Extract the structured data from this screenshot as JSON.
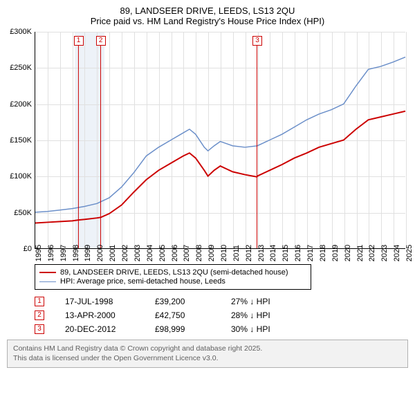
{
  "title": {
    "line1": "89, LANDSEER DRIVE, LEEDS, LS13 2QU",
    "line2": "Price paid vs. HM Land Registry's House Price Index (HPI)"
  },
  "chart": {
    "type": "line",
    "background_color": "#ffffff",
    "grid_color": "#e0e0e0",
    "axis_color": "#000000",
    "x_years": [
      1995,
      1996,
      1997,
      1998,
      1999,
      2000,
      2001,
      2002,
      2003,
      2004,
      2005,
      2006,
      2007,
      2008,
      2009,
      2010,
      2011,
      2012,
      2013,
      2014,
      2015,
      2016,
      2017,
      2018,
      2019,
      2020,
      2021,
      2022,
      2023,
      2024,
      2025
    ],
    "y_ticks": [
      0,
      50,
      100,
      150,
      200,
      250,
      300
    ],
    "y_tick_labels": [
      "£0",
      "£50K",
      "£100K",
      "£150K",
      "£200K",
      "£250K",
      "£300K"
    ],
    "ylim_max": 300,
    "shade_bands": [
      {
        "start": 1998.2,
        "end": 2000.6
      }
    ],
    "series": [
      {
        "name": "89, LANDSEER DRIVE, LEEDS, LS13 2QU (semi-detached house)",
        "color": "#cc0000",
        "width": 2,
        "points": [
          [
            1995,
            35
          ],
          [
            1996,
            36
          ],
          [
            1997,
            37
          ],
          [
            1998,
            38
          ],
          [
            1998.5,
            39.2
          ],
          [
            1999,
            40
          ],
          [
            2000,
            42
          ],
          [
            2000.3,
            42.75
          ],
          [
            2001,
            48
          ],
          [
            2002,
            60
          ],
          [
            2003,
            78
          ],
          [
            2004,
            95
          ],
          [
            2005,
            108
          ],
          [
            2006,
            118
          ],
          [
            2007,
            128
          ],
          [
            2007.5,
            132
          ],
          [
            2008,
            125
          ],
          [
            2008.7,
            108
          ],
          [
            2009,
            100
          ],
          [
            2009.5,
            108
          ],
          [
            2010,
            114
          ],
          [
            2010.5,
            110
          ],
          [
            2011,
            106
          ],
          [
            2012,
            102
          ],
          [
            2012.97,
            98.999
          ],
          [
            2013,
            100
          ],
          [
            2014,
            108
          ],
          [
            2015,
            116
          ],
          [
            2016,
            125
          ],
          [
            2017,
            132
          ],
          [
            2018,
            140
          ],
          [
            2019,
            145
          ],
          [
            2020,
            150
          ],
          [
            2021,
            165
          ],
          [
            2022,
            178
          ],
          [
            2023,
            182
          ],
          [
            2024,
            186
          ],
          [
            2025,
            190
          ]
        ]
      },
      {
        "name": "HPI: Average price, semi-detached house, Leeds",
        "color": "#6b8fc9",
        "width": 1.5,
        "points": [
          [
            1995,
            50
          ],
          [
            1996,
            51
          ],
          [
            1997,
            53
          ],
          [
            1998,
            55
          ],
          [
            1999,
            58
          ],
          [
            2000,
            62
          ],
          [
            2001,
            70
          ],
          [
            2002,
            85
          ],
          [
            2003,
            105
          ],
          [
            2004,
            128
          ],
          [
            2005,
            140
          ],
          [
            2006,
            150
          ],
          [
            2007,
            160
          ],
          [
            2007.5,
            165
          ],
          [
            2008,
            158
          ],
          [
            2008.7,
            140
          ],
          [
            2009,
            135
          ],
          [
            2009.5,
            142
          ],
          [
            2010,
            148
          ],
          [
            2010.5,
            145
          ],
          [
            2011,
            142
          ],
          [
            2012,
            140
          ],
          [
            2013,
            142
          ],
          [
            2014,
            150
          ],
          [
            2015,
            158
          ],
          [
            2016,
            168
          ],
          [
            2017,
            178
          ],
          [
            2018,
            186
          ],
          [
            2019,
            192
          ],
          [
            2020,
            200
          ],
          [
            2021,
            225
          ],
          [
            2022,
            248
          ],
          [
            2023,
            252
          ],
          [
            2024,
            258
          ],
          [
            2025,
            265
          ]
        ]
      }
    ],
    "sale_markers": [
      {
        "n": "1",
        "x": 1998.5,
        "y_top": 20
      },
      {
        "n": "2",
        "x": 2000.3,
        "y_top": 20
      },
      {
        "n": "3",
        "x": 2012.97,
        "y_top": 20
      }
    ],
    "marker_color": "#cc0000"
  },
  "legend": {
    "items": [
      {
        "color": "#cc0000",
        "width": 2,
        "label": "89, LANDSEER DRIVE, LEEDS, LS13 2QU (semi-detached house)"
      },
      {
        "color": "#6b8fc9",
        "width": 1.5,
        "label": "HPI: Average price, semi-detached house, Leeds"
      }
    ]
  },
  "transactions": [
    {
      "n": "1",
      "date": "17-JUL-1998",
      "price": "£39,200",
      "diff": "27% ↓ HPI"
    },
    {
      "n": "2",
      "date": "13-APR-2000",
      "price": "£42,750",
      "diff": "28% ↓ HPI"
    },
    {
      "n": "3",
      "date": "20-DEC-2012",
      "price": "£98,999",
      "diff": "30% ↓ HPI"
    }
  ],
  "footer": {
    "line1": "Contains HM Land Registry data © Crown copyright and database right 2025.",
    "line2": "This data is licensed under the Open Government Licence v3.0."
  }
}
